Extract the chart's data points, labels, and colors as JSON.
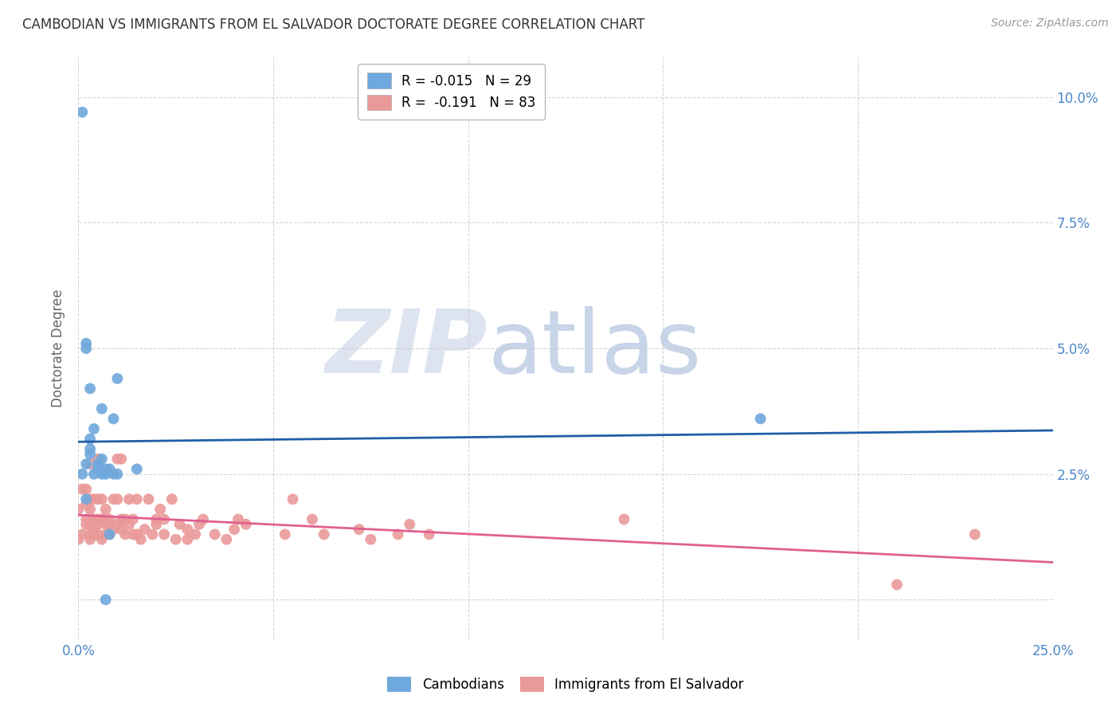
{
  "title": "CAMBODIAN VS IMMIGRANTS FROM EL SALVADOR DOCTORATE DEGREE CORRELATION CHART",
  "source": "Source: ZipAtlas.com",
  "ylabel": "Doctorate Degree",
  "xlabel_ticks": [
    "0.0%",
    "",
    "",
    "",
    "",
    "25.0%"
  ],
  "xlabel_vals": [
    0.0,
    0.05,
    0.1,
    0.15,
    0.2,
    0.25
  ],
  "ylabel_ticks": [
    "",
    "2.5%",
    "5.0%",
    "7.5%",
    "10.0%"
  ],
  "ylabel_vals": [
    0.0,
    0.025,
    0.05,
    0.075,
    0.1
  ],
  "xlim": [
    0.0,
    0.25
  ],
  "ylim": [
    -0.008,
    0.108
  ],
  "cambodian_color": "#6fa8dc",
  "salvador_color": "#ea9999",
  "cambodian_line_color": "#1f5fa6",
  "salvador_line_color": "#e06090",
  "background_color": "#ffffff",
  "grid_color": "#cccccc",
  "title_color": "#333333",
  "axis_label_color": "#4a86c8",
  "right_tick_color": "#4a86c8",
  "cambodian_x": [
    0.001,
    0.001,
    0.002,
    0.002,
    0.002,
    0.003,
    0.003,
    0.003,
    0.003,
    0.004,
    0.004,
    0.005,
    0.005,
    0.005,
    0.006,
    0.006,
    0.006,
    0.007,
    0.007,
    0.007,
    0.008,
    0.008,
    0.009,
    0.009,
    0.01,
    0.01,
    0.015,
    0.175,
    0.002
  ],
  "cambodian_y": [
    0.097,
    0.025,
    0.051,
    0.05,
    0.027,
    0.042,
    0.032,
    0.029,
    0.03,
    0.034,
    0.025,
    0.026,
    0.026,
    0.027,
    0.038,
    0.025,
    0.028,
    0.025,
    0.0,
    0.026,
    0.013,
    0.026,
    0.036,
    0.025,
    0.025,
    0.044,
    0.026,
    0.036,
    0.02
  ],
  "salvador_x": [
    0.0,
    0.0,
    0.001,
    0.001,
    0.002,
    0.002,
    0.002,
    0.002,
    0.003,
    0.003,
    0.003,
    0.003,
    0.003,
    0.003,
    0.004,
    0.004,
    0.004,
    0.004,
    0.005,
    0.005,
    0.005,
    0.005,
    0.005,
    0.006,
    0.006,
    0.006,
    0.006,
    0.007,
    0.007,
    0.007,
    0.008,
    0.008,
    0.008,
    0.009,
    0.009,
    0.01,
    0.01,
    0.01,
    0.011,
    0.011,
    0.011,
    0.012,
    0.012,
    0.013,
    0.013,
    0.014,
    0.014,
    0.015,
    0.015,
    0.016,
    0.017,
    0.018,
    0.019,
    0.02,
    0.02,
    0.021,
    0.022,
    0.022,
    0.024,
    0.025,
    0.026,
    0.028,
    0.028,
    0.03,
    0.031,
    0.032,
    0.035,
    0.038,
    0.04,
    0.041,
    0.043,
    0.053,
    0.055,
    0.06,
    0.063,
    0.072,
    0.075,
    0.082,
    0.085,
    0.09,
    0.14,
    0.21,
    0.23
  ],
  "salvador_y": [
    0.018,
    0.012,
    0.022,
    0.013,
    0.022,
    0.015,
    0.016,
    0.019,
    0.015,
    0.013,
    0.018,
    0.012,
    0.02,
    0.027,
    0.013,
    0.014,
    0.016,
    0.02,
    0.016,
    0.013,
    0.015,
    0.02,
    0.028,
    0.012,
    0.016,
    0.02,
    0.016,
    0.018,
    0.013,
    0.015,
    0.013,
    0.015,
    0.016,
    0.014,
    0.02,
    0.015,
    0.02,
    0.028,
    0.016,
    0.028,
    0.014,
    0.016,
    0.013,
    0.015,
    0.02,
    0.013,
    0.016,
    0.02,
    0.013,
    0.012,
    0.014,
    0.02,
    0.013,
    0.015,
    0.016,
    0.018,
    0.013,
    0.016,
    0.02,
    0.012,
    0.015,
    0.014,
    0.012,
    0.013,
    0.015,
    0.016,
    0.013,
    0.012,
    0.014,
    0.016,
    0.015,
    0.013,
    0.02,
    0.016,
    0.013,
    0.014,
    0.012,
    0.013,
    0.015,
    0.013,
    0.016,
    0.003,
    0.013
  ]
}
